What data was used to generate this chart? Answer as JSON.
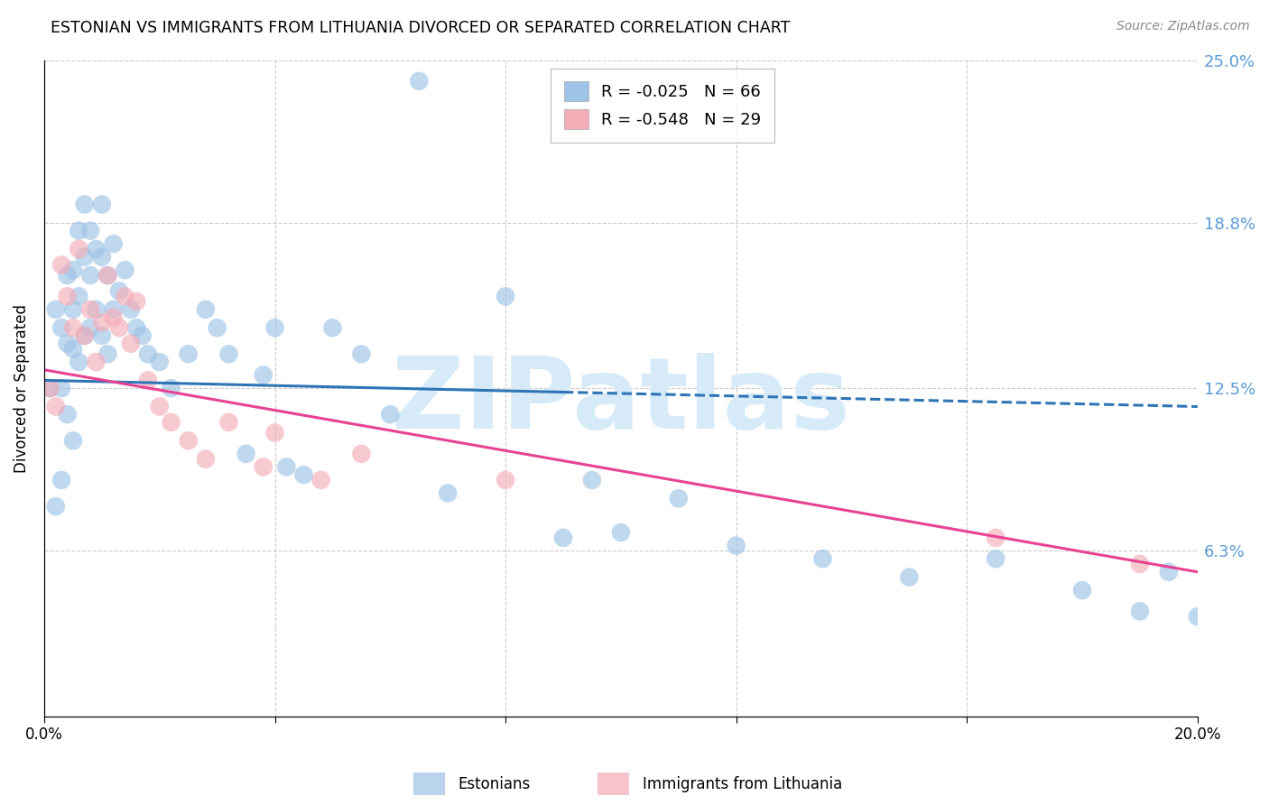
{
  "title": "ESTONIAN VS IMMIGRANTS FROM LITHUANIA DIVORCED OR SEPARATED CORRELATION CHART",
  "source": "Source: ZipAtlas.com",
  "ylabel": "Divorced or Separated",
  "xlim": [
    0.0,
    0.2
  ],
  "ylim": [
    0.0,
    0.25
  ],
  "ytick_positions": [
    0.0,
    0.063,
    0.125,
    0.188,
    0.25
  ],
  "yticklabels": [
    "",
    "6.3%",
    "12.5%",
    "18.8%",
    "25.0%"
  ],
  "ytick_color": "#5b9bd5",
  "grid_color": "#cccccc",
  "watermark_text": "ZIPatlas",
  "watermark_color": "#d6eaf8",
  "estonian_color": "#9dc3e6",
  "lithuanian_color": "#f4acb7",
  "estonian_line_color": "#2e75b6",
  "lithuanian_line_color": "#e84393",
  "legend_R1": "R = -0.025",
  "legend_N1": "N = 66",
  "legend_R2": "R = -0.548",
  "legend_N2": "N = 29",
  "legend_label1": "Estonians",
  "legend_label2": "Immigrants from Lithuania",
  "est_line_start_y": 0.128,
  "est_line_end_y": 0.118,
  "lit_line_start_y": 0.132,
  "lit_line_end_y": 0.055,
  "estonian_x": [
    0.001,
    0.002,
    0.002,
    0.003,
    0.003,
    0.003,
    0.004,
    0.004,
    0.004,
    0.005,
    0.005,
    0.005,
    0.005,
    0.006,
    0.006,
    0.006,
    0.007,
    0.007,
    0.007,
    0.008,
    0.008,
    0.008,
    0.009,
    0.009,
    0.01,
    0.01,
    0.01,
    0.011,
    0.011,
    0.012,
    0.012,
    0.013,
    0.014,
    0.015,
    0.016,
    0.017,
    0.018,
    0.02,
    0.022,
    0.025,
    0.028,
    0.03,
    0.032,
    0.035,
    0.038,
    0.04,
    0.042,
    0.045,
    0.05,
    0.055,
    0.06,
    0.065,
    0.07,
    0.08,
    0.09,
    0.095,
    0.1,
    0.11,
    0.12,
    0.135,
    0.15,
    0.165,
    0.18,
    0.19,
    0.195,
    0.2
  ],
  "estonian_y": [
    0.125,
    0.155,
    0.08,
    0.125,
    0.148,
    0.09,
    0.168,
    0.142,
    0.115,
    0.17,
    0.155,
    0.14,
    0.105,
    0.185,
    0.16,
    0.135,
    0.195,
    0.175,
    0.145,
    0.185,
    0.168,
    0.148,
    0.178,
    0.155,
    0.195,
    0.175,
    0.145,
    0.168,
    0.138,
    0.18,
    0.155,
    0.162,
    0.17,
    0.155,
    0.148,
    0.145,
    0.138,
    0.135,
    0.125,
    0.138,
    0.155,
    0.148,
    0.138,
    0.1,
    0.13,
    0.148,
    0.095,
    0.092,
    0.148,
    0.138,
    0.115,
    0.242,
    0.085,
    0.16,
    0.068,
    0.09,
    0.07,
    0.083,
    0.065,
    0.06,
    0.053,
    0.06,
    0.048,
    0.04,
    0.055,
    0.038
  ],
  "lithuanian_x": [
    0.001,
    0.002,
    0.003,
    0.004,
    0.005,
    0.006,
    0.007,
    0.008,
    0.009,
    0.01,
    0.011,
    0.012,
    0.013,
    0.014,
    0.015,
    0.016,
    0.018,
    0.02,
    0.022,
    0.025,
    0.028,
    0.032,
    0.038,
    0.04,
    0.048,
    0.055,
    0.08,
    0.165,
    0.19
  ],
  "lithuanian_y": [
    0.125,
    0.118,
    0.172,
    0.16,
    0.148,
    0.178,
    0.145,
    0.155,
    0.135,
    0.15,
    0.168,
    0.152,
    0.148,
    0.16,
    0.142,
    0.158,
    0.128,
    0.118,
    0.112,
    0.105,
    0.098,
    0.112,
    0.095,
    0.108,
    0.09,
    0.1,
    0.09,
    0.068,
    0.058
  ]
}
